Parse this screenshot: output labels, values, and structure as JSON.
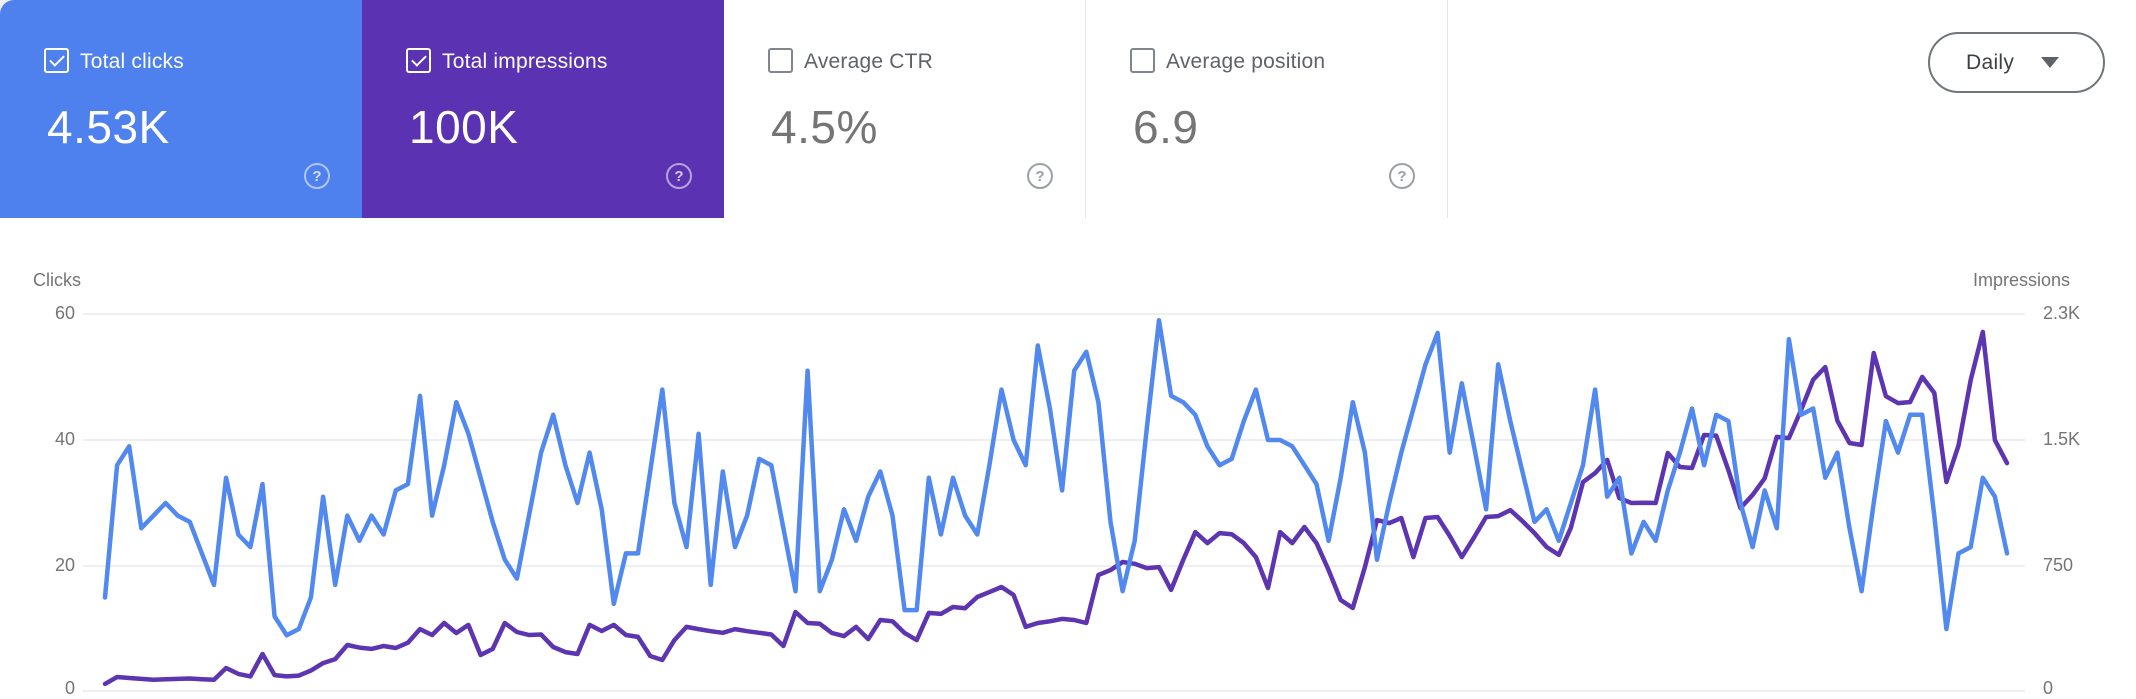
{
  "app": "Search Console Performance",
  "cards": [
    {
      "label": "Total clicks",
      "value": "4.53K",
      "checked": true,
      "bg": "#4e80ee",
      "text_color": "#ffffff"
    },
    {
      "label": "Total impressions",
      "value": "100K",
      "checked": true,
      "bg": "#5b33b2",
      "text_color": "#ffffff"
    },
    {
      "label": "Average CTR",
      "value": "4.5%",
      "checked": false,
      "bg": "#ffffff",
      "text_color": "#757575"
    },
    {
      "label": "Average position",
      "value": "6.9",
      "checked": false,
      "bg": "#ffffff",
      "text_color": "#757575"
    }
  ],
  "granularity": {
    "label": "Daily"
  },
  "chart_data": {
    "type": "line",
    "x_unit": "day",
    "grid": true,
    "left_axis": {
      "label": "Clicks",
      "max": 60,
      "ticks": [
        60,
        40,
        20,
        0
      ],
      "tick_labels": [
        "60",
        "40",
        "20",
        "0"
      ]
    },
    "right_axis": {
      "label": "Impressions",
      "max": 2300,
      "ticks": [
        2300,
        1500,
        750,
        0
      ],
      "tick_labels": [
        "2.3K",
        "1.5K",
        "750",
        "0"
      ]
    },
    "series": [
      {
        "name": "Clicks",
        "axis": "left",
        "color": "#5289ef",
        "values": [
          15,
          36,
          39,
          26,
          28,
          30,
          28,
          27,
          22,
          17,
          34,
          25,
          23,
          33,
          12,
          9,
          10,
          15,
          31,
          17,
          28,
          24,
          28,
          25,
          32,
          33,
          47,
          28,
          36,
          46,
          41,
          34,
          27,
          21,
          18,
          28,
          38,
          44,
          36,
          30,
          38,
          29,
          14,
          22,
          22,
          35,
          48,
          30,
          23,
          41,
          17,
          35,
          23,
          28,
          37,
          36,
          26,
          16,
          51,
          16,
          21,
          29,
          24,
          31,
          35,
          28,
          13,
          13,
          34,
          25,
          34,
          28,
          25,
          36,
          48,
          40,
          36,
          55,
          45,
          32,
          51,
          54,
          46,
          27,
          16,
          24,
          42,
          59,
          47,
          46,
          44,
          39,
          36,
          37,
          43,
          48,
          40,
          40,
          39,
          36,
          33,
          24,
          34,
          46,
          38,
          21,
          30,
          38,
          45,
          52,
          57,
          38,
          49,
          39,
          29,
          52,
          43,
          35,
          27,
          29,
          24,
          30,
          36,
          48,
          31,
          34,
          22,
          27,
          24,
          32,
          38,
          45,
          36,
          44,
          43,
          30,
          23,
          32,
          26,
          56,
          44,
          45,
          34,
          38,
          26,
          16,
          30,
          43,
          38,
          44,
          44,
          28,
          10,
          22,
          23,
          34,
          31,
          22
        ]
      },
      {
        "name": "Impressions",
        "axis": "right",
        "color": "#5e35b1",
        "values": [
          49,
          91,
          85,
          80,
          75,
          78,
          80,
          82,
          78,
          75,
          146,
          110,
          95,
          231,
          103,
          95,
          100,
          130,
          176,
          200,
          286,
          270,
          262,
          280,
          268,
          300,
          383,
          347,
          420,
          359,
          408,
          225,
          262,
          420,
          365,
          347,
          350,
          274,
          243,
          231,
          408,
          371,
          408,
          347,
          335,
          219,
          195,
          316,
          396,
          383,
          370,
          360,
          383,
          370,
          360,
          350,
          280,
          487,
          420,
          415,
          359,
          340,
          396,
          322,
          438,
          430,
          359,
          316,
          481,
          475,
          517,
          510,
          578,
          608,
          639,
          590,
          396,
          420,
          430,
          445,
          438,
          420,
          712,
          742,
          791,
          780,
          754,
          760,
          621,
          803,
          973,
          906,
          967,
          960,
          906,
          821,
          633,
          973,
          906,
          1004,
          906,
          742,
          560,
          511,
          760,
          1046,
          1028,
          1059,
          821,
          1059,
          1065,
          950,
          821,
          940,
          1065,
          1070,
          1107,
          1040,
          967,
          882,
          834,
          1000,
          1278,
          1332,
          1412,
          1180,
          1150,
          1152,
          1150,
          1454,
          1369,
          1363,
          1564,
          1560,
          1350,
          1119,
          1199,
          1300,
          1552,
          1545,
          1716,
          1900,
          1977,
          1650,
          1515,
          1503,
          2063,
          1800,
          1758,
          1764,
          1917,
          1820,
          1278,
          1500,
          1898,
          2191,
          1533,
          1393
        ]
      }
    ]
  }
}
